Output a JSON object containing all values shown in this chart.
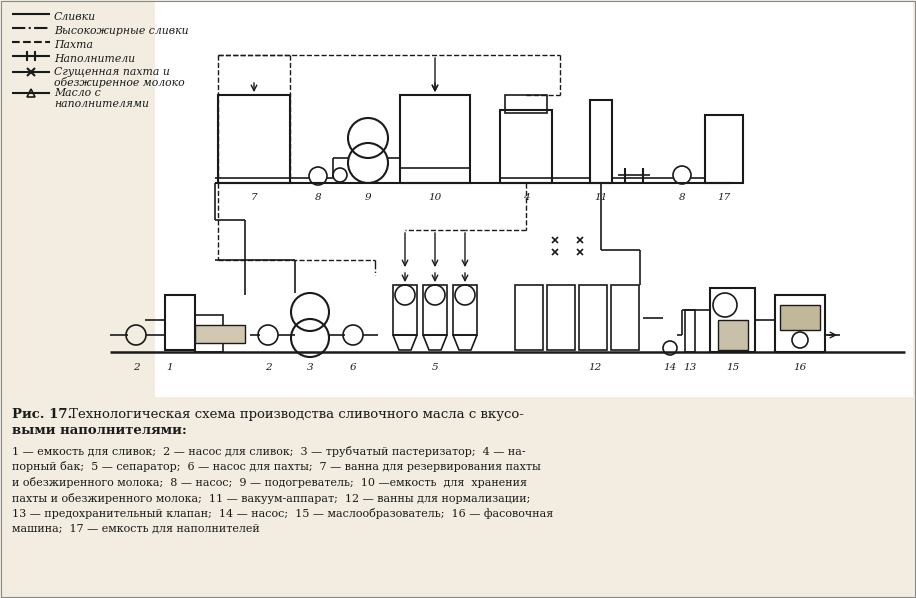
{
  "bg_color": "#f2ede0",
  "line_color": "#1a1a1a",
  "title_bold": "Рис. 17.",
  "title_rest": " Технологическая схема производства сливочного масла с вкусо-",
  "title_line2": "выми наполнителями:",
  "desc": [
    "1 — емкость для сливок;  2 — насос для сливок;  3 — трубчатый пастеризатор;  4 — на-",
    "порный бак;  5 — сепаратор;  6 — насос для пахты;  7 — ванна для резервирования пахты",
    "и обезжиренного молока;  8 — насос;  9 — подогреватель;  10 —емкость  для  хранения",
    "пахты и обезжиренного молока;  11 — вакуум-аппарат;  12 — ванны для нормализации;",
    "13 — предохранительный клапан;  14 — насос;  15 — маслообразователь;  16 — фасовочная",
    "машина;  17 — емкость для наполнителей"
  ]
}
